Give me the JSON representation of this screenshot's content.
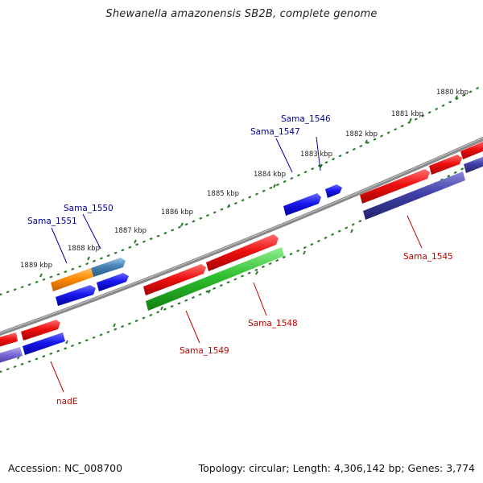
{
  "title": "Shewanella amazonensis SB2B, complete genome",
  "footer": {
    "accession": "Accession: NC_008700",
    "info": "Topology: circular; Length: 4,306,142 bp; Genes: 3,774"
  },
  "colors": {
    "backbone": "#8a8a8a",
    "tick": "#2e7d2e",
    "forward_gene": "#e01010",
    "forward_dark": "#3a3aa8",
    "reverse_gene": "#1c1cee",
    "rna_gene": "#ff8c00",
    "other_gene": "#4682b4",
    "label_blue": "#0000a0",
    "label_red": "#c00000",
    "green_gene": "#30c030"
  },
  "kbp_labels": [
    "1880 kbp",
    "1881 kbp",
    "1882 kbp",
    "1883 kbp",
    "1884 kbp",
    "1885 kbp",
    "1886 kbp",
    "1887 kbp",
    "1888 kbp",
    "1889 kbp"
  ],
  "gene_labels": [
    {
      "text": "Sama_1546",
      "strand": "upper"
    },
    {
      "text": "Sama_1547",
      "strand": "upper"
    },
    {
      "text": "Sama_1550",
      "strand": "upper"
    },
    {
      "text": "Sama_1551",
      "strand": "upper"
    },
    {
      "text": "Sama_1545",
      "strand": "lower"
    },
    {
      "text": "Sama_1548",
      "strand": "lower"
    },
    {
      "text": "Sama_1549",
      "strand": "lower"
    },
    {
      "text": "nadE",
      "strand": "lower"
    }
  ]
}
